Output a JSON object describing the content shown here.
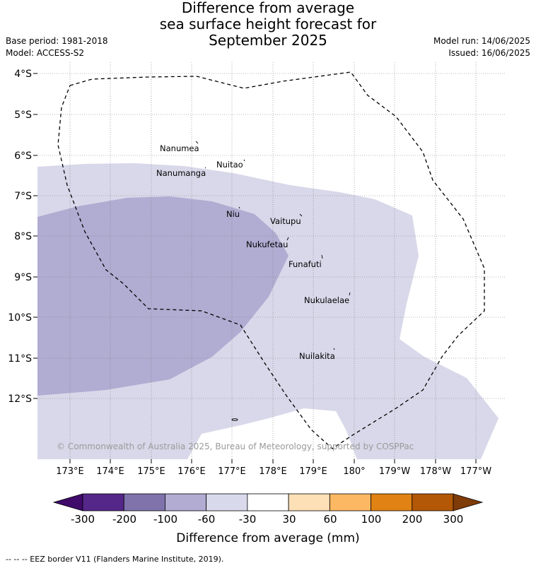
{
  "title": {
    "line1": "Difference from average",
    "line2": "sea surface height forecast for",
    "line3": "September 2025"
  },
  "meta_left": {
    "base_period": "Base period: 1981-2018",
    "model": "Model: ACCESS-S2"
  },
  "meta_right": {
    "model_run": "Model run: 14/06/2025",
    "issued": "Issued: 16/06/2025"
  },
  "map": {
    "lat_labels": [
      "4°S",
      "5°S",
      "6°S",
      "7°S",
      "8°S",
      "9°S",
      "10°S",
      "11°S",
      "12°S"
    ],
    "lon_labels": [
      "173°E",
      "174°E",
      "175°E",
      "176°E",
      "177°E",
      "178°E",
      "179°E",
      "180°",
      "179°W",
      "178°W",
      "177°W"
    ],
    "islands": [
      {
        "name": "Nanumea"
      },
      {
        "name": "Nuitao"
      },
      {
        "name": "Nanumanga"
      },
      {
        "name": "Niu"
      },
      {
        "name": "Vaitupu"
      },
      {
        "name": "Nukufetau"
      },
      {
        "name": "Funafuti"
      },
      {
        "name": "Nukulaelae"
      },
      {
        "name": "Nuilakita"
      }
    ],
    "copyright": "© Commonwealth of Australia 2025, Bureau of Meteorology, supported by COSPPac",
    "colors": {
      "band_minus60_minus30": "#d8d8ea",
      "band_minus100_minus60": "#b1acd2",
      "eez_border": "#000000"
    }
  },
  "colorbar": {
    "ticks": [
      "-300",
      "-200",
      "-100",
      "-60",
      "-30",
      "30",
      "60",
      "100",
      "200",
      "300"
    ],
    "label": "Difference from average (mm)",
    "colors": [
      "#3f0a6a",
      "#542788",
      "#8073ac",
      "#b2abd2",
      "#d8daeb",
      "#ffffff",
      "#fee0b6",
      "#fdb863",
      "#e08214",
      "#b35806",
      "#7f3b08"
    ]
  },
  "footer": {
    "eez_note": "-- -- -- EEZ border V11 (Flanders Marine Institute, 2019)."
  }
}
